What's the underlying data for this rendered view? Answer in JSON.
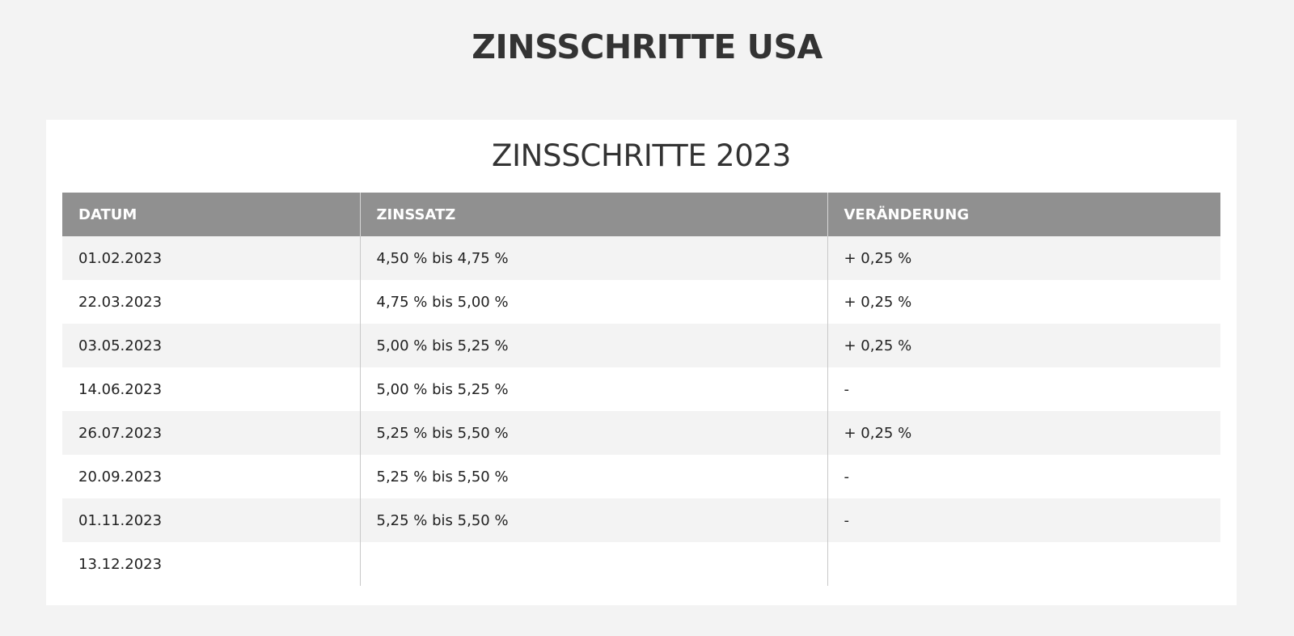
{
  "page": {
    "title": "ZINSSCHRITTE USA"
  },
  "card": {
    "title": "ZINSSCHRITTE 2023"
  },
  "table": {
    "headers": [
      "DATUM",
      "ZINSSATZ",
      "VERÄNDERUNG"
    ],
    "rows": [
      [
        "01.02.2023",
        "4,50 % bis 4,75 %",
        "+ 0,25 %"
      ],
      [
        "22.03.2023",
        "4,75 % bis 5,00 %",
        "+ 0,25 %"
      ],
      [
        "03.05.2023",
        "5,00 % bis 5,25 %",
        "+ 0,25 %"
      ],
      [
        "14.06.2023",
        "5,00 % bis 5,25 %",
        "-"
      ],
      [
        "26.07.2023",
        "5,25 % bis 5,50 %",
        "+ 0,25 %"
      ],
      [
        "20.09.2023",
        "5,25 % bis 5,50 %",
        "-"
      ],
      [
        "01.11.2023",
        "5,25 % bis 5,50 %",
        "-"
      ],
      [
        "13.12.2023",
        "",
        ""
      ]
    ]
  }
}
